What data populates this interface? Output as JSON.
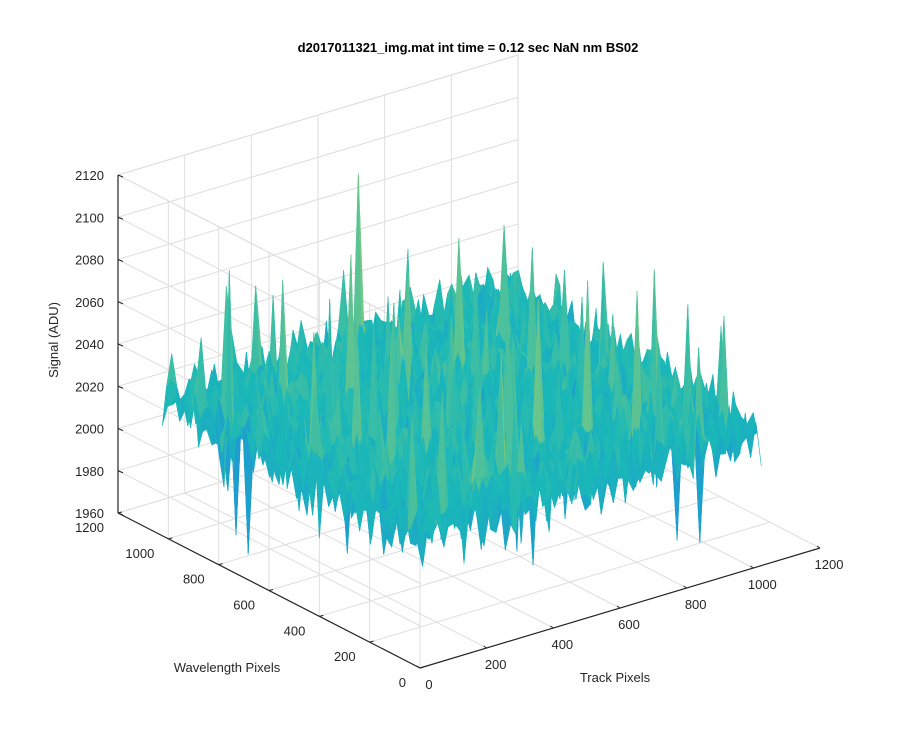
{
  "chart_data": {
    "type": "surface",
    "title": "d2017011321_img.mat int time = 0.12 sec  NaN nm BS02",
    "xlabel": "Track Pixels",
    "ylabel": "Wavelength Pixels",
    "zlabel": "Signal (ADU)",
    "xlim": [
      0,
      1200
    ],
    "ylim": [
      0,
      1200
    ],
    "zlim": [
      1960,
      2120
    ],
    "x_ticks": [
      0,
      200,
      400,
      600,
      800,
      1000,
      1200
    ],
    "y_ticks": [
      0,
      200,
      400,
      600,
      800,
      1000,
      1200
    ],
    "z_ticks": [
      1960,
      1980,
      2000,
      2020,
      2040,
      2060,
      2080,
      2100,
      2120
    ],
    "data_extent": {
      "x": [
        0,
        1024
      ],
      "y": [
        0,
        1024
      ]
    },
    "signal_mean": 2025,
    "signal_min": 1975,
    "signal_max": 2105,
    "grid": true,
    "colormap": [
      "#3e26a8",
      "#1f92da",
      "#1ab8b8",
      "#7fc97f",
      "#d2c23c",
      "#f9fb15"
    ]
  }
}
